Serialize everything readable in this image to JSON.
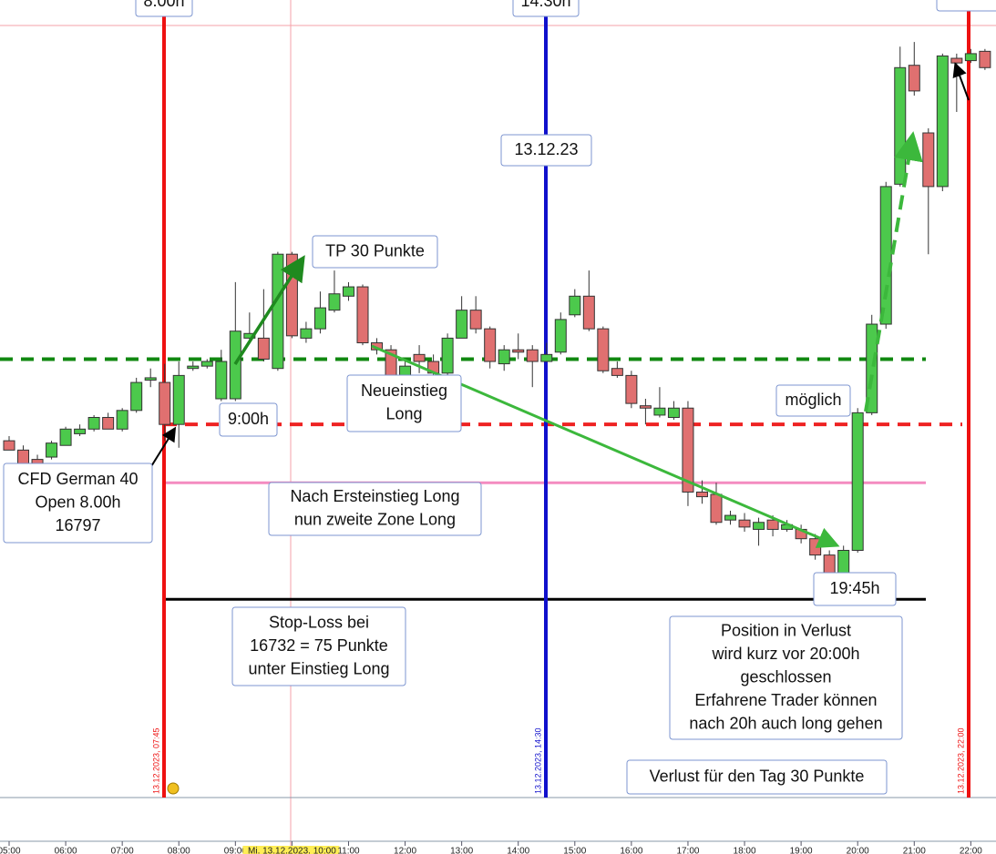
{
  "chart_data": {
    "type": "candlestick",
    "title": "13.12.23",
    "categories": [
      "05:00",
      null,
      null,
      null,
      "06:00",
      null,
      null,
      null,
      "07:00",
      null,
      null,
      null,
      "08:00",
      null,
      null,
      null,
      "09:00",
      null,
      null,
      null,
      "Mi. 13.12.2023. 10:00",
      null,
      null,
      null,
      "11:00",
      null,
      null,
      null,
      "12:00",
      null,
      null,
      null,
      "13:00",
      null,
      null,
      null,
      "14:00",
      null,
      null,
      null,
      "15:00",
      null,
      null,
      null,
      "16:00",
      null,
      null,
      null,
      "17:00",
      null,
      null,
      null,
      "18:00",
      null,
      null,
      null,
      "19:00",
      null,
      null,
      null,
      "20:00",
      null,
      null,
      null,
      "21:00",
      null,
      null,
      null,
      "22:00",
      null
    ],
    "open": [
      16790,
      16786,
      16782,
      16783,
      16788,
      16793,
      16795,
      16800,
      16795,
      16803,
      16816,
      16815,
      16797,
      16821,
      16822,
      16808,
      16808,
      16834,
      16834,
      16821,
      16870,
      16834,
      16838,
      16846,
      16852,
      16856,
      16832,
      16829,
      16817,
      16827,
      16824,
      16819,
      16834,
      16846,
      16838,
      16823,
      16829,
      16829,
      16824,
      16828,
      16844,
      16852,
      16838,
      16821,
      16818,
      16805,
      16801,
      16800,
      16804,
      16768,
      16767,
      16756,
      16756,
      16752,
      16756,
      16752,
      16752,
      16748,
      16741,
      16729,
      16743,
      16802,
      16840,
      16900,
      16951,
      16922,
      16899,
      16954,
      16953,
      16957
    ],
    "high": [
      16792,
      16788,
      16784,
      16790,
      16796,
      16797,
      16801,
      16802,
      16804,
      16817,
      16821,
      16823,
      16824,
      16824,
      16825,
      16829,
      16858,
      16845,
      16855,
      16871,
      16871,
      16841,
      16854,
      16863,
      16858,
      16857,
      16834,
      16831,
      16824,
      16831,
      16827,
      16836,
      16852,
      16852,
      16839,
      16831,
      16836,
      16831,
      16832,
      16845,
      16855,
      16863,
      16839,
      16824,
      16820,
      16808,
      16813,
      16807,
      16807,
      16773,
      16772,
      16760,
      16759,
      16757,
      16758,
      16756,
      16754,
      16750,
      16743,
      16745,
      16804,
      16844,
      16901,
      16959,
      16961,
      16924,
      16956,
      16956,
      16958,
      16958
    ],
    "low": [
      16786,
      16778,
      16778,
      16782,
      16788,
      16792,
      16794,
      16795,
      16794,
      16802,
      16813,
      16790,
      16787,
      16820,
      16821,
      16807,
      16807,
      16833,
      16824,
      16820,
      16834,
      16832,
      16836,
      16845,
      16850,
      16831,
      16827,
      16815,
      16807,
      16819,
      16817,
      16818,
      16834,
      16836,
      16821,
      16820,
      16825,
      16813,
      16824,
      16827,
      16843,
      16837,
      16819,
      16817,
      16804,
      16797,
      16800,
      16799,
      16762,
      16763,
      16754,
      16754,
      16751,
      16745,
      16749,
      16751,
      16746,
      16739,
      16729,
      16728,
      16742,
      16801,
      16838,
      16899,
      16938,
      16870,
      16897,
      16931,
      16952,
      16949
    ],
    "close": [
      16786,
      16780,
      16779,
      16789,
      16795,
      16795,
      16800,
      16795,
      16803,
      16815,
      16817,
      16797,
      16818,
      16822,
      16824,
      16824,
      16837,
      16836,
      16825,
      16870,
      16835,
      16838,
      16847,
      16853,
      16856,
      16832,
      16829,
      16818,
      16822,
      16824,
      16819,
      16834,
      16846,
      16838,
      16824,
      16829,
      16828,
      16824,
      16827,
      16842,
      16852,
      16838,
      16820,
      16818,
      16806,
      16804,
      16804,
      16804,
      16768,
      16766,
      16755,
      16758,
      16753,
      16755,
      16752,
      16754,
      16748,
      16741,
      16730,
      16743,
      16802,
      16840,
      16899,
      16950,
      16940,
      16899,
      16955,
      16952,
      16956,
      16950
    ],
    "up_color": "#4cc94c",
    "down_color": "#e07070",
    "ylim": [
      16637,
      16979
    ],
    "levels": [
      {
        "value": 16825,
        "color": "#118811",
        "style": "dashed"
      },
      {
        "value": 16797,
        "color": "#ee2222",
        "style": "dashed"
      },
      {
        "value": 16772,
        "color": "#f48cc0",
        "style": "solid"
      },
      {
        "value": 16722,
        "color": "#000000",
        "style": "solid"
      }
    ],
    "vertical_lines": [
      {
        "label": "13.12.2023, 07:45",
        "tag": "8.00h",
        "color": "#ee1111"
      },
      {
        "label": "13.12.2023, 14:30",
        "tag": "14:30h",
        "color": "#1010cc"
      },
      {
        "label": "13.12.2023, 22:00",
        "color": "#ee1111"
      }
    ],
    "annotations": [
      {
        "lines": [
          "13.12.23"
        ]
      },
      {
        "lines": [
          "TP 30 Punkte"
        ],
        "color": "#33aa33"
      },
      {
        "lines": [
          "Neueinstieg",
          "Long"
        ]
      },
      {
        "lines": [
          "9:00h"
        ]
      },
      {
        "lines": [
          "CFD German 40",
          "Open 8.00h",
          "16797"
        ]
      },
      {
        "lines": [
          "Nach Ersteinstieg Long",
          "nun zweite Zone Long"
        ]
      },
      {
        "lines": [
          "möglich"
        ]
      },
      {
        "lines": [
          "19:45h"
        ]
      },
      {
        "lines": [
          "Stop-Loss bei",
          "16732 = 75 Punkte",
          "unter Einstieg Long"
        ]
      },
      {
        "lines": [
          "Position in Verlust",
          "wird kurz vor 20:00h",
          "geschlossen",
          "Erfahrene Trader können",
          "nach 20h auch long gehen"
        ]
      },
      {
        "lines": [
          "Verlust für den Tag 30 Punkte"
        ],
        "color": "#ee1111"
      }
    ]
  }
}
